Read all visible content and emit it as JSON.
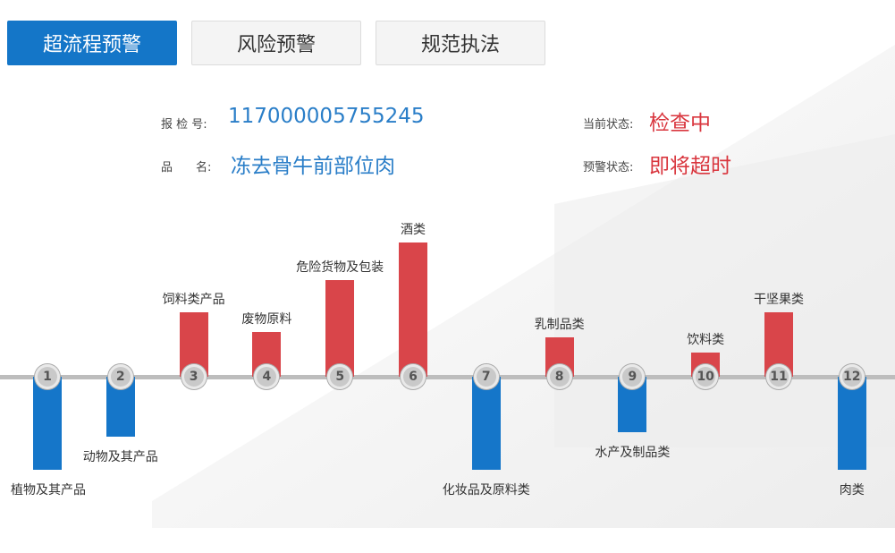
{
  "tabs": [
    {
      "label": "超流程预警",
      "active": true
    },
    {
      "label": "风险预警",
      "active": false
    },
    {
      "label": "规范执法",
      "active": false
    }
  ],
  "inspection": {
    "number_label": "报 检 号:",
    "number_value": "117000005755245",
    "product_label": "品　　名:",
    "product_value": "冻去骨牛前部位肉",
    "current_status_label": "当前状态:",
    "current_status_value": "检查中",
    "warning_status_label": "预警状态:",
    "warning_status_value": "即将超时"
  },
  "colors": {
    "up": "#d9454a",
    "down": "#1576c9",
    "accent": "#1476c8"
  },
  "categories": [
    {
      "index": "1",
      "label": "植物及其产品",
      "direction": "down",
      "level": 1.0
    },
    {
      "index": "2",
      "label": "动物及其产品",
      "direction": "down",
      "level": 0.64
    },
    {
      "index": "3",
      "label": "饲料类产品",
      "direction": "up",
      "level": 0.48
    },
    {
      "index": "4",
      "label": "废物原料",
      "direction": "up",
      "level": 0.33
    },
    {
      "index": "5",
      "label": "危险货物及包装",
      "direction": "up",
      "level": 0.72
    },
    {
      "index": "6",
      "label": "酒类",
      "direction": "up",
      "level": 1.0
    },
    {
      "index": "7",
      "label": "化妆品及原料类",
      "direction": "down",
      "level": 1.0
    },
    {
      "index": "8",
      "label": "乳制品类",
      "direction": "up",
      "level": 0.29
    },
    {
      "index": "9",
      "label": "水产及制品类",
      "direction": "down",
      "level": 0.6
    },
    {
      "index": "10",
      "label": "饮料类",
      "direction": "up",
      "level": 0.18
    },
    {
      "index": "11",
      "label": "干坚果类",
      "direction": "up",
      "level": 0.48
    },
    {
      "index": "12",
      "label": "肉类",
      "direction": "down",
      "level": 1.0
    }
  ]
}
